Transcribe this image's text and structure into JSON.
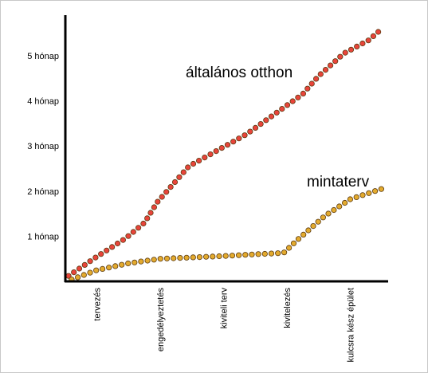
{
  "chart_data": {
    "type": "scatter",
    "title": "",
    "xlabel": "",
    "ylabel": "",
    "y_tick_labels": [
      "1 hónap",
      "2 hónap",
      "3 hónap",
      "4 hónap",
      "5 hónap"
    ],
    "y_tick_values": [
      1,
      2,
      3,
      4,
      5
    ],
    "ylim": [
      0,
      5.9
    ],
    "categories": [
      "tervezés",
      "engedélyeztetés",
      "kiviteli terv",
      "kivitelezés",
      "kulcsra kész épület"
    ],
    "category_positions": [
      0.5,
      1.5,
      2.5,
      3.5,
      4.5
    ],
    "xlim": [
      0,
      5.1
    ],
    "grid": false,
    "legend": "none",
    "series": [
      {
        "name": "általános otthon",
        "color": "#e8443a",
        "label_color": "#000000",
        "x": [
          0.05,
          0.5,
          0.95,
          1.25,
          1.45,
          1.95,
          2.4,
          2.85,
          3.3,
          3.75,
          4.0,
          4.4,
          4.8,
          5.0
        ],
        "values": [
          0.12,
          0.55,
          0.95,
          1.3,
          1.75,
          2.55,
          2.9,
          3.25,
          3.7,
          4.15,
          4.55,
          5.05,
          5.35,
          5.6
        ]
      },
      {
        "name": "mintaterv",
        "color": "#e3aa2e",
        "label_color": "#000000",
        "x": [
          0.1,
          0.5,
          1.0,
          1.5,
          2.0,
          2.5,
          3.0,
          3.45,
          3.65,
          4.1,
          4.5,
          5.0
        ],
        "values": [
          0.04,
          0.25,
          0.4,
          0.5,
          0.53,
          0.56,
          0.6,
          0.63,
          0.9,
          1.45,
          1.82,
          2.05
        ]
      }
    ]
  }
}
